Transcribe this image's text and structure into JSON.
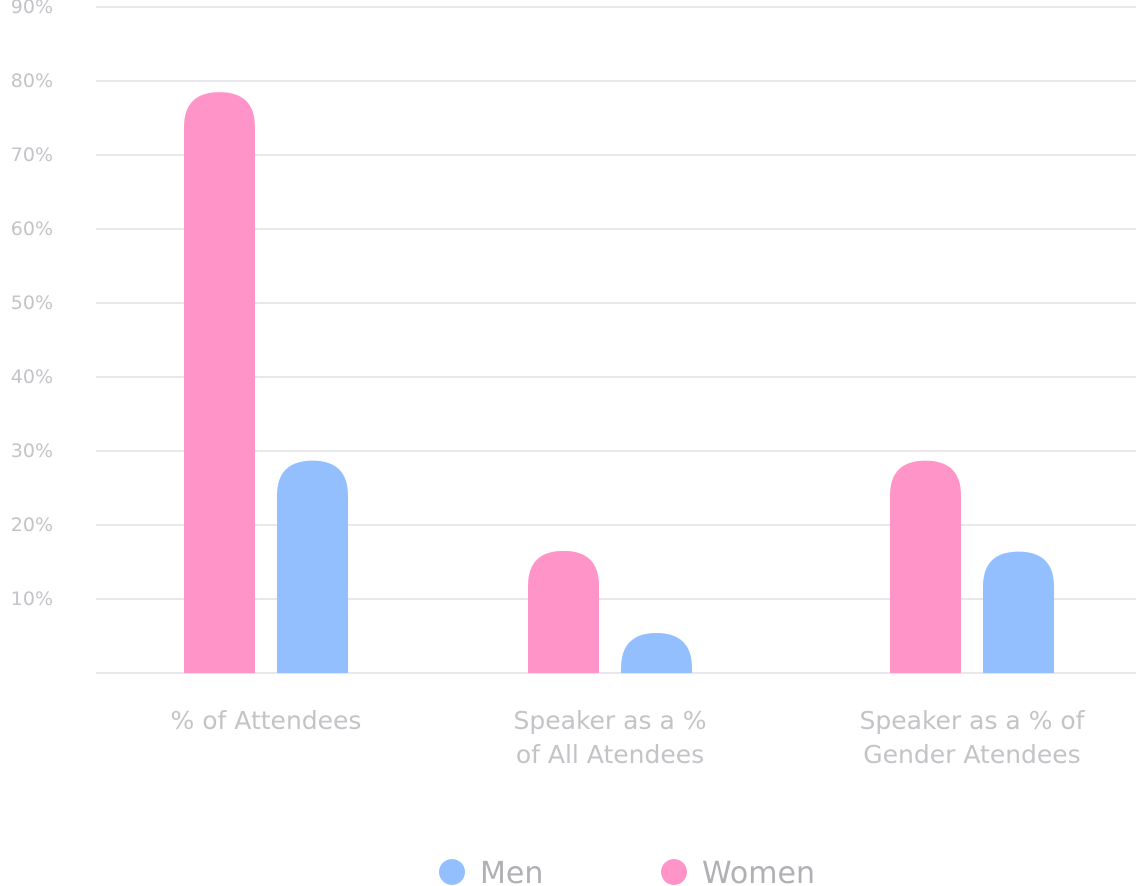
{
  "chart_data": {
    "type": "bar",
    "categories": [
      [
        "% of Attendees"
      ],
      [
        "Speaker as a %",
        "of All Atendees"
      ],
      [
        "Speaker as a % of",
        "Gender Atendees"
      ]
    ],
    "series": [
      {
        "name": "Women",
        "color": "#ff94c8",
        "values": [
          78.5,
          16.5,
          28.7
        ]
      },
      {
        "name": "Men",
        "color": "#94bfff",
        "values": [
          28.7,
          5.4,
          16.4
        ]
      }
    ],
    "y_ticks": [
      "10%",
      "20%",
      "30%",
      "40%",
      "50%",
      "60%",
      "70%",
      "80%",
      "90%"
    ],
    "ylim": [
      0,
      90
    ],
    "grid": true,
    "legend": {
      "position": "bottom-center",
      "items": [
        {
          "label": "Men",
          "color": "#94bfff"
        },
        {
          "label": "Women",
          "color": "#ff94c8"
        }
      ]
    }
  }
}
